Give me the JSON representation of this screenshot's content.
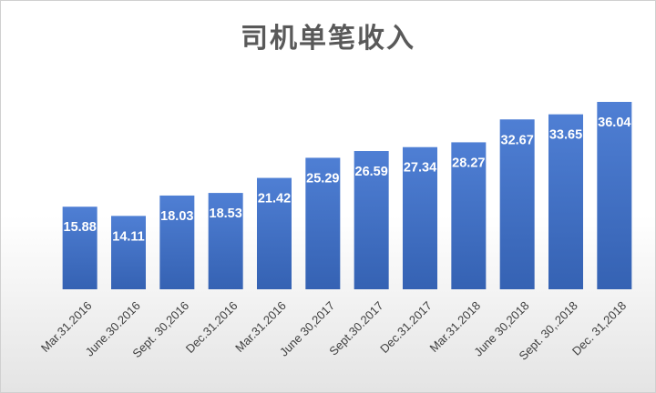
{
  "chart_data": {
    "type": "bar",
    "title": "司机单笔收入",
    "xlabel": "",
    "ylabel": "",
    "ylim": [
      0,
      40
    ],
    "grid": false,
    "legend": "none",
    "bar_color": "#4472C4",
    "categories": [
      "Mar.31.2016",
      "June.30.2016",
      "Sept. 30,2016",
      "Dec.31.2016",
      "Mar.31.2016",
      "June 30,2017",
      "Sept.30.2017",
      "Dec.31.2017",
      "Mar.31.2018",
      "June 30,2018",
      "Sept. 30,.2018",
      "Dec. 31,2018"
    ],
    "values": [
      15.88,
      14.11,
      18.03,
      18.53,
      21.42,
      25.29,
      26.59,
      27.34,
      28.27,
      32.67,
      33.65,
      36.04
    ],
    "data_labels": [
      "15.88",
      "14.11",
      "18.03",
      "18.53",
      "21.42",
      "25.29",
      "26.59",
      "27.34",
      "28.27",
      "32.67",
      "33.65",
      "36.04"
    ]
  }
}
